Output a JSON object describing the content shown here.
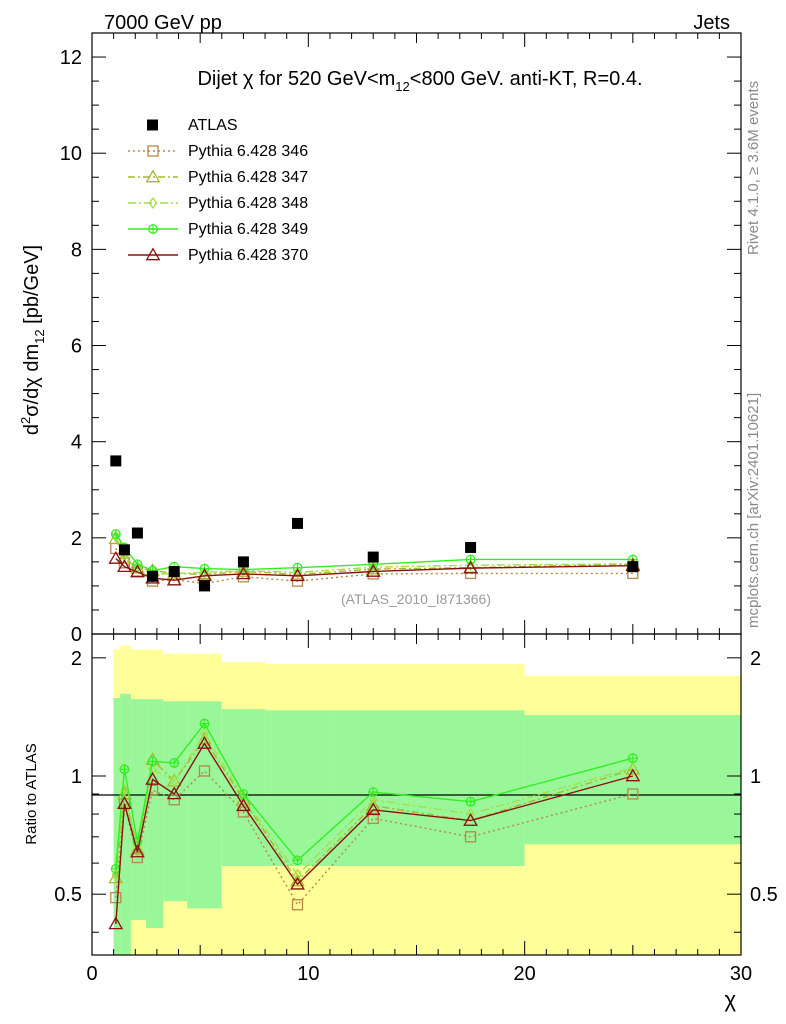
{
  "header": {
    "left": "7000 GeV pp",
    "right": "Jets"
  },
  "side_text": {
    "rivet": "Rivet 4.1.0, ≥ 3.6M events",
    "mcplots": "mcplots.cern.ch [arXiv:2401.10621]"
  },
  "colors": {
    "data": "#000000",
    "p346": "#b8874a",
    "p347": "#a8b82b",
    "p348": "#9fe04a",
    "p349": "#33ee22",
    "p370": "#8b1010",
    "band_yellow": "#ffff99",
    "band_green": "#99f799"
  },
  "chart_data": [
    {
      "type": "scatter",
      "panel": "main",
      "title_parts": {
        "t1": "Dijet ",
        "chi": "χ",
        "t2": " for 520 GeV<m",
        "sub": "12",
        "t3": "<800 GeV.  anti-KT, R=0.4."
      },
      "ylabel_parts": {
        "d": "d",
        "sup": "2",
        "rest": "σ/dχ dm",
        "sub": "12",
        "unit": " [pb/GeV]"
      },
      "watermark": "(ATLAS_2010_I871366)",
      "xlim": [
        0,
        30
      ],
      "ylim": [
        0,
        12.5
      ],
      "yticks": [
        "0",
        "2",
        "4",
        "6",
        "8",
        "10",
        "12"
      ],
      "x": [
        1.1,
        1.5,
        2.1,
        2.8,
        3.8,
        5.2,
        7.0,
        9.5,
        13.0,
        17.5,
        25.0
      ],
      "legend": [
        "ATLAS",
        "Pythia 6.428 346",
        "Pythia 6.428 347",
        "Pythia 6.428 348",
        "Pythia 6.428 349",
        "Pythia 6.428 370"
      ],
      "series": [
        {
          "name": "ATLAS",
          "values": [
            3.6,
            1.75,
            2.1,
            1.2,
            1.3,
            1.0,
            1.5,
            2.3,
            1.6,
            1.8,
            1.4
          ]
        },
        {
          "name": "Pythia 6.428 346",
          "values": [
            1.78,
            1.48,
            1.31,
            1.1,
            1.13,
            1.05,
            1.19,
            1.1,
            1.25,
            1.26,
            1.26
          ]
        },
        {
          "name": "Pythia 6.428 347",
          "values": [
            1.98,
            1.57,
            1.37,
            1.32,
            1.26,
            1.24,
            1.3,
            1.24,
            1.35,
            1.38,
            1.45
          ]
        },
        {
          "name": "Pythia 6.428 348",
          "values": [
            2.03,
            1.62,
            1.39,
            1.24,
            1.26,
            1.28,
            1.32,
            1.28,
            1.39,
            1.43,
            1.46
          ]
        },
        {
          "name": "Pythia 6.428 349",
          "values": [
            2.08,
            1.8,
            1.45,
            1.32,
            1.4,
            1.36,
            1.34,
            1.38,
            1.45,
            1.55,
            1.55
          ]
        },
        {
          "name": "Pythia 6.428 370",
          "values": [
            1.57,
            1.4,
            1.29,
            1.16,
            1.12,
            1.21,
            1.25,
            1.21,
            1.3,
            1.37,
            1.42
          ]
        }
      ]
    },
    {
      "type": "line",
      "panel": "ratio",
      "ylabel": "Ratio to ATLAS",
      "xlabel": "χ",
      "xlim": [
        0,
        30
      ],
      "ylim": [
        0.35,
        2.3
      ],
      "yticks": [
        "0.5",
        "1",
        "2"
      ],
      "xticks": [
        "0",
        "10",
        "20",
        "30"
      ],
      "x": [
        1.1,
        1.5,
        2.1,
        2.8,
        3.8,
        5.2,
        7.0,
        9.5,
        13.0,
        17.5,
        25.0
      ],
      "series": [
        {
          "name": "Pythia 6.428 346",
          "values": [
            0.49,
            0.85,
            0.62,
            0.92,
            0.87,
            1.03,
            0.81,
            0.47,
            0.78,
            0.7,
            0.9
          ]
        },
        {
          "name": "Pythia 6.428 347",
          "values": [
            0.55,
            0.9,
            0.65,
            1.1,
            0.97,
            1.24,
            0.87,
            0.54,
            0.84,
            0.77,
            1.04
          ]
        },
        {
          "name": "Pythia 6.428 348",
          "values": [
            0.56,
            0.92,
            0.66,
            1.04,
            0.97,
            1.28,
            0.88,
            0.56,
            0.87,
            0.8,
            1.05
          ]
        },
        {
          "name": "Pythia 6.428 349",
          "values": [
            0.58,
            1.04,
            0.68,
            1.09,
            1.08,
            1.36,
            0.9,
            0.61,
            0.91,
            0.86,
            1.11
          ]
        },
        {
          "name": "Pythia 6.428 370",
          "values": [
            0.42,
            0.85,
            0.64,
            0.98,
            0.9,
            1.21,
            0.84,
            0.53,
            0.82,
            0.77,
            1.0
          ]
        }
      ],
      "bands": {
        "edges": [
          1.0,
          1.3,
          1.8,
          2.5,
          3.3,
          4.4,
          6.0,
          8.0,
          11.0,
          15.0,
          20.0,
          30.0
        ],
        "yellow_low": [
          0.35,
          0.35,
          0.35,
          0.35,
          0.35,
          0.35,
          0.35,
          0.35,
          0.35,
          0.35,
          0.35
        ],
        "yellow_high": [
          2.1,
          2.15,
          2.1,
          2.1,
          2.05,
          2.05,
          1.95,
          1.93,
          1.93,
          1.93,
          1.8
        ],
        "green_low": [
          0.35,
          0.35,
          0.43,
          0.41,
          0.48,
          0.46,
          0.59,
          0.59,
          0.59,
          0.59,
          0.67
        ],
        "green_high": [
          1.58,
          1.62,
          1.57,
          1.57,
          1.55,
          1.55,
          1.48,
          1.47,
          1.47,
          1.47,
          1.43
        ]
      }
    }
  ]
}
